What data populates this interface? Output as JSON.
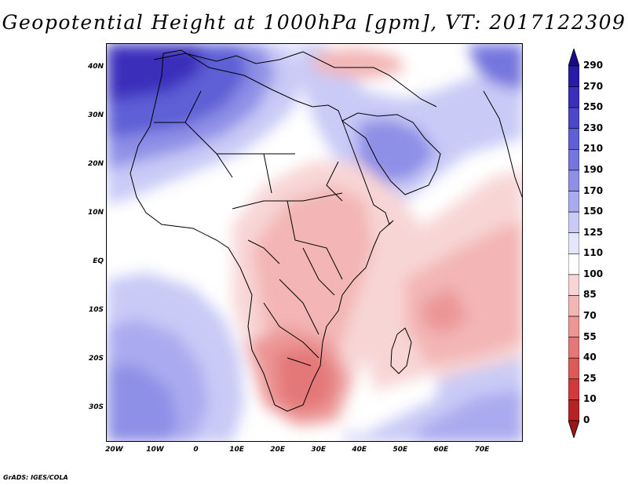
{
  "title": "Geopotential Height at 1000hPa [gpm], VT: 2017122309",
  "credit": "GrADS: IGES/COLA",
  "y_axis": {
    "labels": [
      "40N",
      "30N",
      "20N",
      "10N",
      "EQ",
      "10S",
      "20S",
      "30S"
    ],
    "values": [
      40,
      30,
      20,
      10,
      0,
      -10,
      -20,
      -30
    ],
    "range": [
      -37,
      45
    ]
  },
  "x_axis": {
    "labels": [
      "20W",
      "10W",
      "0",
      "10E",
      "20E",
      "30E",
      "40E",
      "50E",
      "60E",
      "70E"
    ],
    "values": [
      -20,
      -10,
      0,
      10,
      20,
      30,
      40,
      50,
      60,
      70
    ],
    "range": [
      -22,
      80
    ]
  },
  "colorbar": {
    "levels": [
      "290",
      "270",
      "250",
      "230",
      "210",
      "190",
      "170",
      "150",
      "125",
      "110",
      "100",
      "85",
      "70",
      "55",
      "40",
      "25",
      "10",
      "0"
    ],
    "colors": [
      "#1a0a8c",
      "#2a1aa8",
      "#3a2fbb",
      "#4c46c9",
      "#5f5fd6",
      "#7575de",
      "#8e8fe6",
      "#aaaaf0",
      "#c9caf6",
      "#e6e6fb",
      "#ffffff",
      "#f8d5d5",
      "#f3b5b5",
      "#ec9696",
      "#e47878",
      "#dc5a5a",
      "#d03a3a",
      "#b42424",
      "#9a1818"
    ]
  },
  "field": {
    "regions": [
      {
        "name": "north-atlantic-high",
        "level": "290",
        "color": "#3a2fbb"
      },
      {
        "name": "sahara-high",
        "level": "230",
        "color": "#5f5fd6"
      },
      {
        "name": "arabia-high",
        "level": "190",
        "color": "#7575de"
      },
      {
        "name": "south-atlantic-high",
        "level": "170",
        "color": "#8e8fe6"
      },
      {
        "name": "central-africa-low",
        "level": "85",
        "color": "#f3b5b5"
      },
      {
        "name": "southern-africa-low",
        "level": "40",
        "color": "#e47878"
      },
      {
        "name": "indian-ocean-trough",
        "level": "85",
        "color": "#ec9696"
      }
    ]
  }
}
